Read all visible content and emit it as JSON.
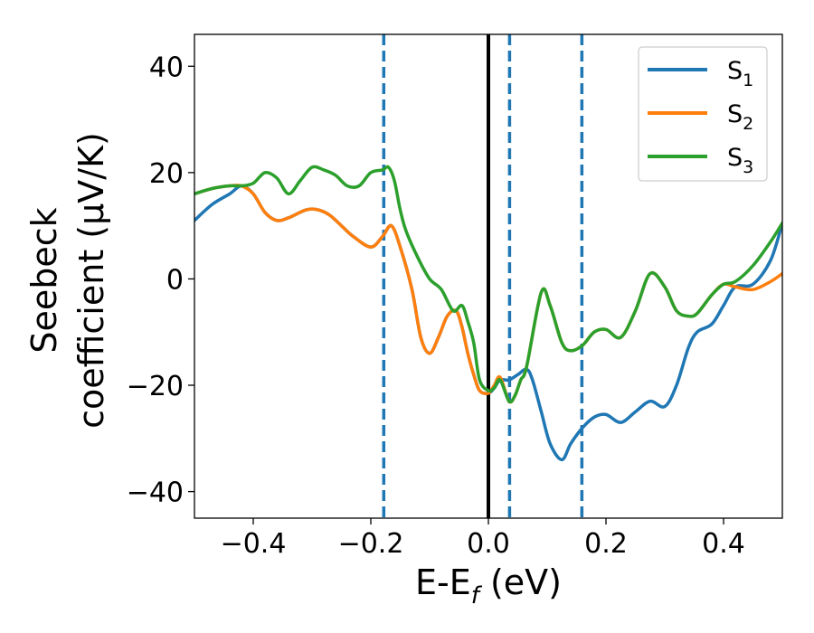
{
  "chart_data": {
    "type": "line",
    "xlabel": "E-E_f (eV)",
    "xlabel_parts": {
      "main": "E-E",
      "sub": "f",
      "tail": " (eV)"
    },
    "ylabel_lines": [
      "Seebeck",
      "coefficient  (μV/K)"
    ],
    "xlim": [
      -0.5,
      0.5
    ],
    "ylim": [
      -45,
      46
    ],
    "xticks": [
      -0.4,
      -0.2,
      0.0,
      0.2,
      0.4
    ],
    "xtick_labels": [
      "−0.4",
      "−0.2",
      "0.0",
      "0.2",
      "0.4"
    ],
    "yticks": [
      -40,
      -20,
      0,
      20,
      40
    ],
    "ytick_labels": [
      "−40",
      "−20",
      "0",
      "20",
      "40"
    ],
    "grid": false,
    "legend_position": "top-right",
    "vertical_lines": [
      {
        "x": 0.0,
        "style": "solid",
        "color": "#000000"
      },
      {
        "x": -0.178,
        "style": "dashed",
        "color": "#1f77b4"
      },
      {
        "x": 0.036,
        "style": "dashed",
        "color": "#1f77b4"
      },
      {
        "x": 0.159,
        "style": "dashed",
        "color": "#1f77b4"
      }
    ],
    "series": [
      {
        "name": "S",
        "name_sub": "1",
        "color": "#1f77b4",
        "x": [
          -0.5,
          -0.47,
          -0.44,
          -0.42,
          -0.4,
          -0.38,
          -0.36,
          -0.34,
          -0.31,
          -0.29,
          -0.27,
          -0.25,
          -0.23,
          -0.2,
          -0.18,
          -0.165,
          -0.15,
          -0.13,
          -0.115,
          -0.1,
          -0.085,
          -0.07,
          -0.055,
          -0.045,
          -0.035,
          -0.025,
          -0.015,
          0.0,
          0.01,
          0.02,
          0.035,
          0.05,
          0.065,
          0.075,
          0.09,
          0.105,
          0.125,
          0.14,
          0.16,
          0.18,
          0.2,
          0.225,
          0.25,
          0.275,
          0.3,
          0.32,
          0.34,
          0.355,
          0.38,
          0.4,
          0.42,
          0.45,
          0.48,
          0.5
        ],
        "y": [
          11,
          14,
          16,
          17.5,
          16,
          12.5,
          11,
          11.5,
          13,
          13,
          12,
          10,
          8,
          6,
          8,
          10,
          6,
          -2,
          -11,
          -14,
          -11,
          -7,
          -6,
          -9,
          -14,
          -18,
          -21,
          -21.5,
          -20.5,
          -19,
          -19,
          -18,
          -17,
          -19,
          -25,
          -31,
          -34,
          -31,
          -28,
          -26,
          -25.5,
          -27,
          -25,
          -23,
          -24,
          -20,
          -13,
          -10,
          -8.5,
          -5,
          -1.5,
          -1,
          3.5,
          10.5
        ]
      },
      {
        "name": "S",
        "name_sub": "2",
        "color": "#ff7f0e",
        "x": [
          -0.5,
          -0.47,
          -0.44,
          -0.42,
          -0.4,
          -0.38,
          -0.36,
          -0.34,
          -0.31,
          -0.29,
          -0.27,
          -0.25,
          -0.23,
          -0.2,
          -0.18,
          -0.165,
          -0.15,
          -0.13,
          -0.115,
          -0.1,
          -0.085,
          -0.07,
          -0.055,
          -0.045,
          -0.035,
          -0.025,
          -0.015,
          0.0,
          0.01,
          0.02,
          0.035,
          0.045,
          0.055,
          0.065,
          0.09,
          0.105,
          0.125,
          0.14,
          0.16,
          0.18,
          0.2,
          0.225,
          0.25,
          0.275,
          0.3,
          0.32,
          0.34,
          0.355,
          0.38,
          0.4,
          0.42,
          0.45,
          0.48,
          0.5
        ],
        "y": [
          16,
          17,
          17.5,
          17.5,
          16,
          12.5,
          11,
          11.5,
          13,
          13,
          12,
          10,
          8,
          6,
          8,
          10,
          6,
          -2,
          -11,
          -14,
          -11,
          -7,
          -6,
          -9,
          -14,
          -18,
          -21,
          -21.5,
          -20,
          -18.5,
          -23,
          -22,
          -19,
          -16.5,
          -2.5,
          -5,
          -12,
          -13.5,
          -12.5,
          -10,
          -9.5,
          -11,
          -6,
          1,
          -1.5,
          -6,
          -7,
          -6.5,
          -3,
          -1,
          -1.5,
          -2,
          -0.5,
          1
        ]
      },
      {
        "name": "S",
        "name_sub": "3",
        "color": "#2ca02c",
        "x": [
          -0.5,
          -0.47,
          -0.44,
          -0.42,
          -0.4,
          -0.38,
          -0.36,
          -0.34,
          -0.32,
          -0.3,
          -0.28,
          -0.26,
          -0.24,
          -0.22,
          -0.2,
          -0.18,
          -0.17,
          -0.16,
          -0.15,
          -0.14,
          -0.12,
          -0.1,
          -0.08,
          -0.06,
          -0.045,
          -0.035,
          -0.025,
          -0.015,
          0.0,
          0.01,
          0.02,
          0.035,
          0.045,
          0.055,
          0.065,
          0.09,
          0.105,
          0.125,
          0.14,
          0.16,
          0.18,
          0.2,
          0.225,
          0.25,
          0.275,
          0.3,
          0.32,
          0.34,
          0.355,
          0.38,
          0.4,
          0.42,
          0.45,
          0.48,
          0.5
        ],
        "y": [
          16,
          17,
          17.5,
          17.5,
          18,
          20,
          19,
          16,
          18.5,
          21,
          20.5,
          19.5,
          17.5,
          17.5,
          20,
          20.5,
          21,
          18.5,
          13,
          9,
          4,
          0,
          -2,
          -6,
          -5,
          -8,
          -12,
          -19,
          -21,
          -20.5,
          -19,
          -23,
          -22,
          -19,
          -16.5,
          -2.5,
          -5,
          -12,
          -13.5,
          -12.5,
          -10,
          -9.5,
          -11,
          -6,
          1,
          -1.5,
          -6,
          -7,
          -6.5,
          -3,
          -1,
          -0.5,
          2.5,
          7,
          10.5
        ]
      }
    ]
  }
}
